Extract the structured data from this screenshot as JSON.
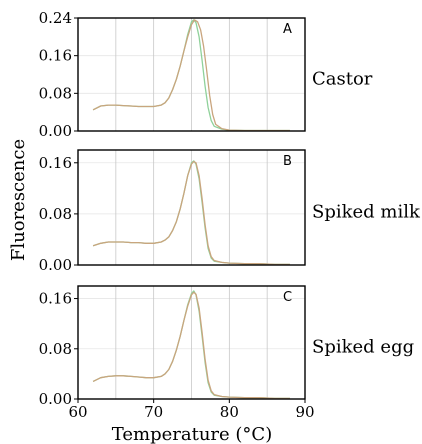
{
  "chart_data": {
    "type": "line",
    "ylabel": "Fluorescence",
    "xlabel": "Temperature (°C)",
    "xlim": [
      60,
      90
    ],
    "x_ticks": [
      "60",
      "70",
      "80",
      "90"
    ],
    "grid": "vertical at 65, 70, 75, 80, 85",
    "colors": {
      "trace_main": "#c9a57e",
      "trace_alt": "#8fd19a"
    },
    "panels": [
      {
        "letter": "A",
        "name": "Castor",
        "ylim": [
          0,
          0.24
        ],
        "y_ticks": [
          "0.24",
          "0.16",
          "0.08",
          "0.00"
        ],
        "series": [
          {
            "x": [
              62,
              63,
              64,
              65,
              66,
              67,
              68,
              69,
              70,
              71,
              71.5,
              72,
              72.5,
              73,
              73.5,
              74,
              74.5,
              75,
              75.3,
              75.6,
              76,
              76.4,
              76.8,
              77.2,
              77.6,
              78,
              79,
              80,
              82,
              84,
              86,
              88
            ],
            "y": [
              0.045,
              0.053,
              0.055,
              0.055,
              0.054,
              0.053,
              0.052,
              0.052,
              0.052,
              0.055,
              0.06,
              0.07,
              0.088,
              0.11,
              0.138,
              0.17,
              0.205,
              0.232,
              0.236,
              0.23,
              0.2,
              0.15,
              0.095,
              0.05,
              0.022,
              0.01,
              0.004,
              0.002,
              0.001,
              0.001,
              0.001,
              0.001
            ]
          },
          {
            "x": [
              62,
              63,
              64,
              65,
              66,
              67,
              68,
              69,
              70,
              71,
              71.5,
              72,
              72.5,
              73,
              73.5,
              74,
              74.5,
              75,
              75.4,
              75.8,
              76.2,
              76.6,
              77,
              77.4,
              77.8,
              78.2,
              79,
              80,
              82,
              84,
              86,
              88
            ],
            "y": [
              0.045,
              0.053,
              0.055,
              0.055,
              0.054,
              0.053,
              0.052,
              0.052,
              0.052,
              0.055,
              0.06,
              0.07,
              0.088,
              0.11,
              0.138,
              0.17,
              0.2,
              0.226,
              0.236,
              0.232,
              0.215,
              0.18,
              0.13,
              0.075,
              0.035,
              0.014,
              0.005,
              0.002,
              0.001,
              0.001,
              0.001,
              0.001
            ]
          }
        ]
      },
      {
        "letter": "B",
        "name": "Spiked milk",
        "ylim": [
          0,
          0.18
        ],
        "y_ticks": [
          "0.16",
          "0.08",
          "0.00"
        ],
        "series": [
          {
            "x": [
              62,
              63,
              64,
              65,
              66,
              67,
              68,
              69,
              70,
              71,
              71.5,
              72,
              72.5,
              73,
              73.5,
              74,
              74.5,
              75,
              75.3,
              75.6,
              76,
              76.4,
              76.8,
              77.2,
              77.6,
              78,
              79,
              80,
              82,
              84,
              86,
              88
            ],
            "y": [
              0.03,
              0.034,
              0.036,
              0.036,
              0.036,
              0.035,
              0.035,
              0.034,
              0.034,
              0.036,
              0.039,
              0.044,
              0.054,
              0.068,
              0.088,
              0.112,
              0.14,
              0.16,
              0.163,
              0.158,
              0.135,
              0.098,
              0.058,
              0.026,
              0.011,
              0.006,
              0.004,
              0.003,
              0.002,
              0.002,
              0.001,
              0.001
            ]
          },
          {
            "x": [
              62,
              63,
              64,
              65,
              66,
              67,
              68,
              69,
              70,
              71,
              71.5,
              72,
              72.5,
              73,
              73.5,
              74,
              74.5,
              75,
              75.3,
              75.6,
              76,
              76.4,
              76.8,
              77.2,
              77.6,
              78,
              79,
              80,
              82,
              84,
              86,
              88
            ],
            "y": [
              0.03,
              0.034,
              0.036,
              0.036,
              0.036,
              0.035,
              0.035,
              0.034,
              0.034,
              0.036,
              0.039,
              0.044,
              0.054,
              0.068,
              0.088,
              0.112,
              0.14,
              0.158,
              0.162,
              0.16,
              0.14,
              0.104,
              0.063,
              0.03,
              0.013,
              0.007,
              0.004,
              0.003,
              0.002,
              0.002,
              0.001,
              0.001
            ]
          }
        ]
      },
      {
        "letter": "C",
        "name": "Spiked egg",
        "ylim": [
          0,
          0.18
        ],
        "y_ticks": [
          "0.16",
          "0.08",
          "0.00"
        ],
        "series": [
          {
            "x": [
              62,
              63,
              64,
              65,
              66,
              67,
              68,
              69,
              70,
              71,
              71.5,
              72,
              72.5,
              73,
              73.5,
              74,
              74.5,
              75,
              75.3,
              75.6,
              76,
              76.4,
              76.8,
              77.2,
              77.6,
              78,
              79,
              80,
              82,
              84,
              86,
              88
            ],
            "y": [
              0.028,
              0.034,
              0.036,
              0.037,
              0.037,
              0.036,
              0.035,
              0.034,
              0.034,
              0.036,
              0.04,
              0.047,
              0.06,
              0.078,
              0.1,
              0.125,
              0.15,
              0.168,
              0.172,
              0.166,
              0.14,
              0.1,
              0.058,
              0.026,
              0.011,
              0.006,
              0.004,
              0.003,
              0.002,
              0.002,
              0.001,
              0.001
            ]
          },
          {
            "x": [
              62,
              63,
              64,
              65,
              66,
              67,
              68,
              69,
              70,
              71,
              71.5,
              72,
              72.5,
              73,
              73.5,
              74,
              74.5,
              75,
              75.3,
              75.6,
              76,
              76.4,
              76.8,
              77.2,
              77.6,
              78,
              79,
              80,
              82,
              84,
              86,
              88
            ],
            "y": [
              0.028,
              0.034,
              0.036,
              0.037,
              0.037,
              0.036,
              0.035,
              0.034,
              0.034,
              0.036,
              0.04,
              0.047,
              0.06,
              0.078,
              0.1,
              0.125,
              0.148,
              0.166,
              0.17,
              0.167,
              0.145,
              0.106,
              0.063,
              0.03,
              0.013,
              0.007,
              0.004,
              0.003,
              0.002,
              0.002,
              0.001,
              0.001
            ]
          }
        ]
      }
    ]
  }
}
